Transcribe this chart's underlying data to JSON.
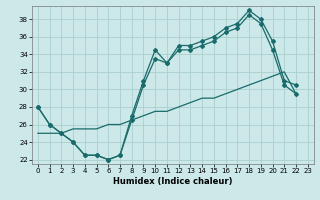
{
  "xlabel": "Humidex (Indice chaleur)",
  "background_color": "#cce8e8",
  "grid_color": "#aacfcf",
  "line_color": "#1a6b6b",
  "xlim": [
    -0.5,
    23.5
  ],
  "ylim": [
    21.5,
    39.5
  ],
  "yticks": [
    22,
    24,
    26,
    28,
    30,
    32,
    34,
    36,
    38
  ],
  "xticks": [
    0,
    1,
    2,
    3,
    4,
    5,
    6,
    7,
    8,
    9,
    10,
    11,
    12,
    13,
    14,
    15,
    16,
    17,
    18,
    19,
    20,
    21,
    22,
    23
  ],
  "line1_x": [
    0,
    1,
    2,
    3,
    4,
    5,
    6,
    7,
    8,
    9,
    10,
    11,
    12,
    13,
    14,
    15,
    16,
    17,
    18,
    19,
    20,
    21,
    22
  ],
  "line1_y": [
    28,
    26,
    25,
    24,
    22.5,
    22.5,
    22,
    22.5,
    27,
    31,
    34.5,
    33,
    35,
    35,
    35.5,
    36,
    37,
    37.5,
    39,
    38,
    35.5,
    31,
    30.5
  ],
  "line2_x": [
    0,
    1,
    2,
    3,
    4,
    5,
    6,
    7,
    8,
    9,
    10,
    11,
    12,
    13,
    14,
    15,
    16,
    17,
    18,
    19,
    20,
    21,
    22
  ],
  "line2_y": [
    28,
    26,
    25,
    24,
    22.5,
    22.5,
    22,
    22.5,
    26.5,
    30.5,
    33.5,
    33,
    34.5,
    34.5,
    35,
    35.5,
    36.5,
    37,
    38.5,
    37.5,
    34.5,
    30.5,
    29.5
  ],
  "line3_x": [
    0,
    1,
    2,
    3,
    4,
    5,
    6,
    7,
    8,
    9,
    10,
    11,
    12,
    13,
    14,
    15,
    16,
    17,
    18,
    19,
    20,
    21,
    22
  ],
  "line3_y": [
    25,
    25,
    25,
    25.5,
    25.5,
    25.5,
    26,
    26,
    26.5,
    27,
    27.5,
    27.5,
    28,
    28.5,
    29,
    29,
    29.5,
    30,
    30.5,
    31,
    31.5,
    32,
    29.5
  ]
}
